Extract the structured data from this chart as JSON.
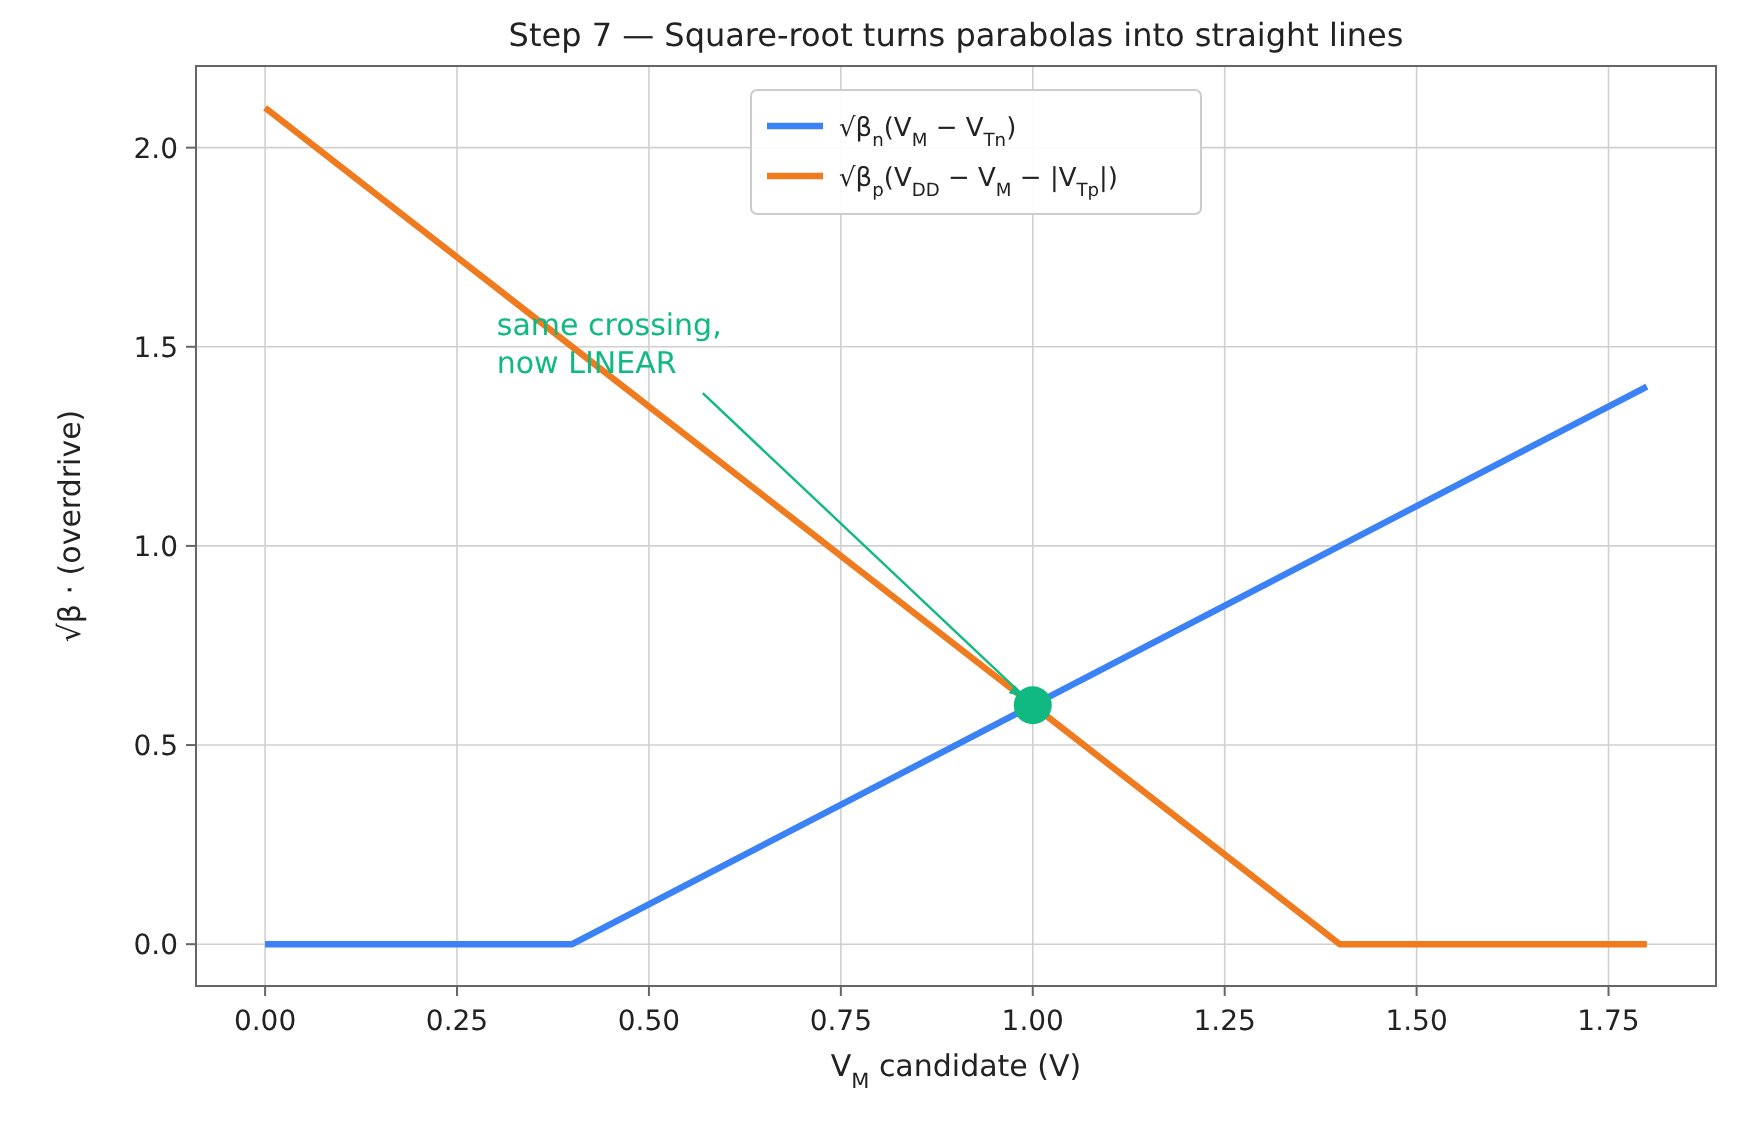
{
  "chart_data": {
    "type": "line",
    "title": "Step 7 — Square-root turns parabolas into straight lines",
    "xlabel": "V$_{M}$ candidate (V)",
    "ylabel": "√β · (overdrive)",
    "xlim": [
      -0.09,
      1.89
    ],
    "ylim": [
      -0.105,
      2.205
    ],
    "xticks": [
      {
        "value": 0,
        "label": "0.00"
      },
      {
        "value": 0.25,
        "label": "0.25"
      },
      {
        "value": 0.5,
        "label": "0.50"
      },
      {
        "value": 0.75,
        "label": "0.75"
      },
      {
        "value": 1,
        "label": "1.00"
      },
      {
        "value": 1.25,
        "label": "1.25"
      },
      {
        "value": 1.5,
        "label": "1.50"
      },
      {
        "value": 1.75,
        "label": "1.75"
      }
    ],
    "yticks": [
      {
        "value": 0,
        "label": "0.0"
      },
      {
        "value": 0.5,
        "label": "0.5"
      },
      {
        "value": 1,
        "label": "1.0"
      },
      {
        "value": 1.5,
        "label": "1.5"
      },
      {
        "value": 2,
        "label": "2.0"
      }
    ],
    "grid": true,
    "legend": "top",
    "line_style": "solid",
    "series": [
      {
        "name": "√β$_{n}$(V$_{M}$ − V$_{Tn}$)",
        "color": "#3b82f6",
        "x": [
          0,
          0.4,
          1.8
        ],
        "values": [
          0,
          0,
          1.4
        ]
      },
      {
        "name": "√β$_{p}$(V$_{DD}$ − V$_{M}$ − |V$_{Tp}$|)",
        "color": "#f07b1e",
        "x": [
          0,
          1.4,
          1.8
        ],
        "values": [
          2.1,
          0,
          0
        ]
      },
      {
        "type": "scatter",
        "color": "#10b981",
        "marker": "circle",
        "x": [
          1
        ],
        "values": [
          0.6
        ]
      }
    ],
    "annotations": [
      {
        "text": "same crossing,\nnow LINEAR",
        "x": 1,
        "y": 0.6
      }
    ]
  }
}
